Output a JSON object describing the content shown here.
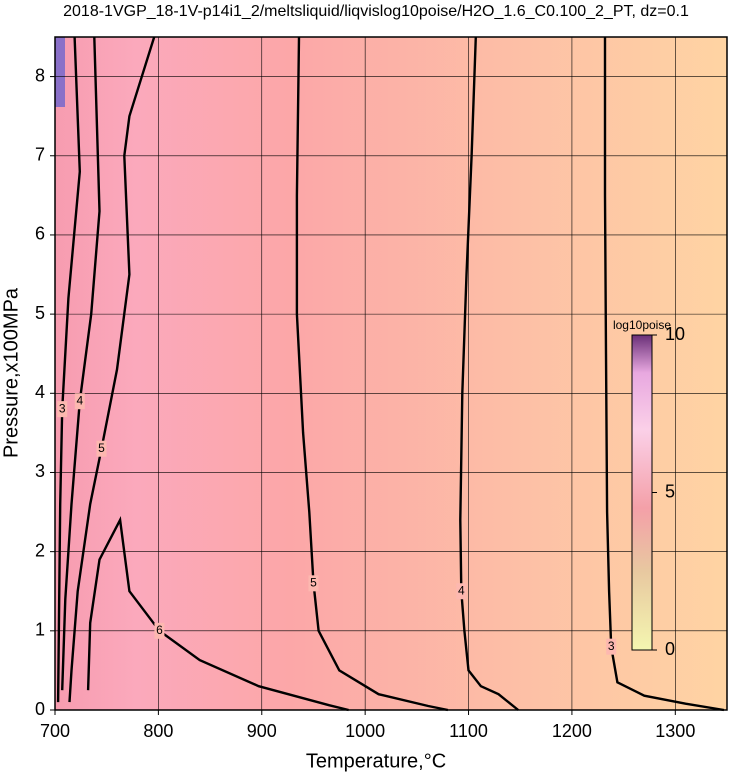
{
  "chart_data": {
    "type": "contour",
    "title": "2018-1VGP_18-1V-p14i1_2/meltsliquid/liqvislog10poise/H2O_1.6_C0.100_2_PT, dz=0.1",
    "x_label": "Temperature,°C",
    "y_label": "Pressure,x100MPa",
    "xlim": [
      700,
      1350
    ],
    "ylim": [
      0,
      8.5
    ],
    "xticks": [
      700,
      800,
      900,
      1000,
      1100,
      1200,
      1300
    ],
    "yticks": [
      0,
      1,
      2,
      3,
      4,
      5,
      6,
      7,
      8
    ],
    "grid": true,
    "contours": [
      {
        "level": 3,
        "x": [
          1232,
          1232,
          1233,
          1234,
          1236,
          1238,
          1244,
          1270,
          1310,
          1347
        ],
        "y": [
          8.5,
          6.5,
          4.5,
          2.5,
          1.5,
          0.8,
          0.35,
          0.18,
          0.08,
          0
        ]
      },
      {
        "level": 4,
        "x": [
          1107,
          1103,
          1098,
          1094,
          1092,
          1093,
          1096,
          1100,
          1112,
          1129,
          1148
        ],
        "y": [
          8.5,
          7,
          5.5,
          4,
          2.4,
          1.5,
          1,
          0.5,
          0.3,
          0.2,
          0
        ]
      },
      {
        "level": 5,
        "x": [
          936,
          934,
          934,
          940,
          946,
          950,
          955,
          975,
          1013,
          1061,
          1080
        ],
        "y": [
          8.5,
          6.5,
          5,
          3.5,
          2.5,
          1.6,
          1,
          0.5,
          0.2,
          0.05,
          0
        ]
      },
      {
        "level": 5,
        "x": [
          796,
          772,
          767,
          772,
          760,
          745,
          734,
          722,
          716,
          714
        ],
        "y": [
          8.5,
          7.5,
          7,
          5.5,
          4.3,
          3.3,
          2.6,
          1.5,
          0.5,
          0.1
        ]
      },
      {
        "level": 6,
        "x": [
          732,
          734,
          743,
          763,
          772,
          801,
          840,
          897,
          965,
          984
        ],
        "y": [
          0.25,
          1.1,
          1.9,
          2.4,
          1.5,
          1,
          0.63,
          0.3,
          0.06,
          0
        ]
      },
      {
        "level": 4,
        "x": [
          738,
          743,
          735,
          724,
          716,
          710,
          707
        ],
        "y": [
          8.5,
          6.3,
          5,
          3.9,
          2.6,
          1.4,
          0.25
        ]
      },
      {
        "level": 3,
        "x": [
          719,
          724,
          713,
          707,
          705,
          703
        ],
        "y": [
          8.5,
          6.8,
          5.2,
          3.8,
          2.6,
          0.1
        ]
      }
    ],
    "colorbar": {
      "label": "log10poise",
      "lim": [
        0,
        10
      ],
      "ticks": [
        0,
        5,
        10
      ]
    }
  }
}
